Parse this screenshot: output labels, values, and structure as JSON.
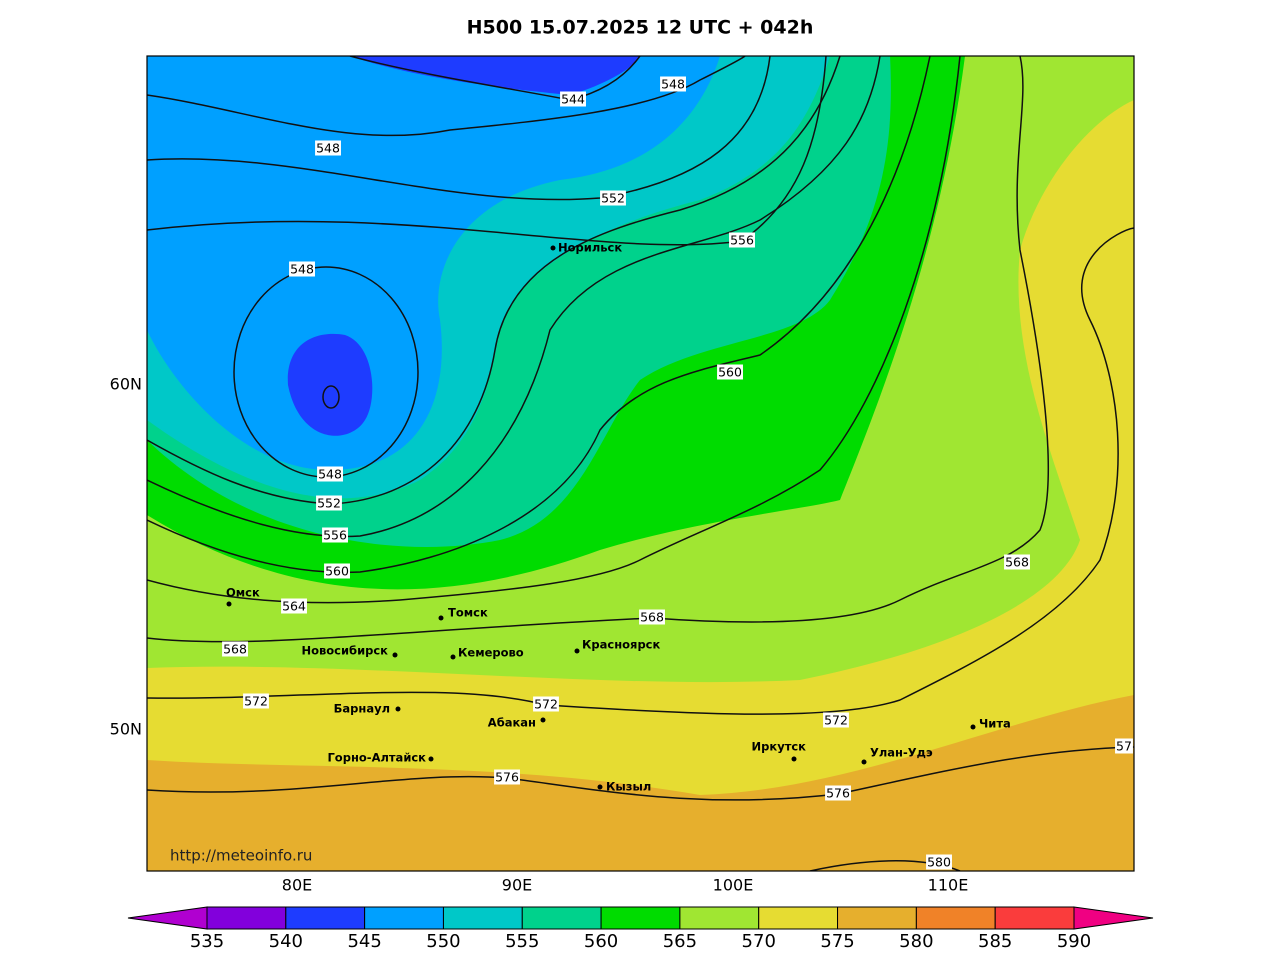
{
  "title": "H500  15.07.2025 12 UTC + 042h",
  "url": "http://meteoinfo.ru",
  "lon_labels": [
    "80E",
    "90E",
    "100E",
    "110E"
  ],
  "lat_labels": [
    "60N",
    "50N"
  ],
  "cities": [
    "Норильск",
    "Омск",
    "Томск",
    "Новосибирск",
    "Кемерово",
    "Красноярск",
    "Барнаул",
    "Абакан",
    "Иркутск",
    "Улан-Удэ",
    "Чита",
    "Горно-Алтайск",
    "Кызыл"
  ],
  "contour_labels": [
    544,
    548,
    548,
    552,
    556,
    548,
    560,
    548,
    552,
    556,
    560,
    564,
    568,
    568,
    568,
    572,
    572,
    572,
    57,
    576,
    576,
    580
  ],
  "colorbar": {
    "ticks": [
      535,
      540,
      545,
      550,
      555,
      560,
      565,
      570,
      575,
      580,
      585,
      590
    ],
    "colors": [
      "#b000d0",
      "#8200dc",
      "#1e3cff",
      "#00a0ff",
      "#00c8c8",
      "#00d28c",
      "#00dc00",
      "#a0e632",
      "#e6dc32",
      "#e6af2d",
      "#f08228",
      "#fa3c3c",
      "#f00082"
    ]
  }
}
